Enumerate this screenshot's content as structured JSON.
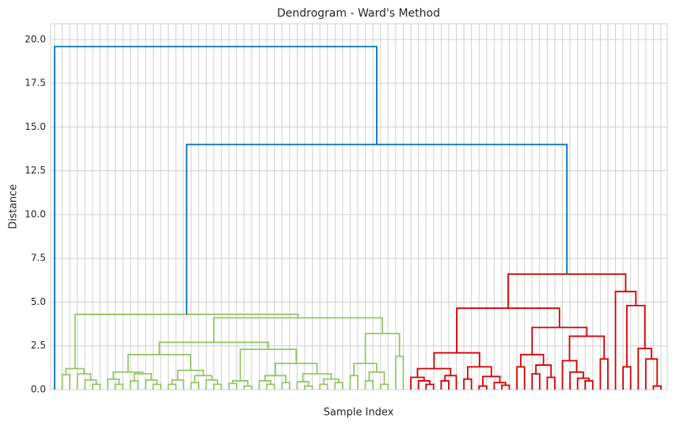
{
  "chart_data": {
    "type": "dendrogram",
    "title": "Dendrogram - Ward's Method",
    "x_label": "Sample Index",
    "y_label": "Distance",
    "ylim": [
      0,
      20.9
    ],
    "yticks": [
      {
        "value": 0,
        "label": "0.0"
      },
      2.5,
      {
        "value": 5,
        "label": "5.0"
      },
      7.5,
      {
        "value": 10,
        "label": "10.0"
      },
      12.5,
      {
        "value": 15,
        "label": "15.0"
      },
      17.5,
      {
        "value": 20,
        "label": "20.0"
      }
    ],
    "grid": true,
    "link_color": "#0173b2",
    "tree": [
      19.6,
      null,
      [
        14.0,
        {
          "color": "#98c46a",
          "node": [
            4.3,
            [
              1.2,
              [
                0.85,
                null,
                null
              ],
              [
                0.9,
                null,
                [
                  0.55,
                  null,
                  [
                    0.3,
                    null,
                    null
                  ]
                ]
              ]
            ],
            [
              4.1,
              [
                2.7,
                [
                  2.0,
                  [
                    1.0,
                    [
                      0.6,
                      null,
                      [
                        0.3,
                        null,
                        null
                      ]
                    ],
                    [
                      0.9,
                      [
                        0.5,
                        null,
                        null
                      ],
                      [
                        0.55,
                        null,
                        [
                          0.3,
                          null,
                          null
                        ]
                      ]
                    ]
                  ],
                  [
                    1.1,
                    [
                      0.55,
                      [
                        0.3,
                        null,
                        null
                      ],
                      null
                    ],
                    [
                      0.8,
                      [
                        0.4,
                        null,
                        null
                      ],
                      [
                        0.55,
                        null,
                        [
                          0.3,
                          null,
                          null
                        ]
                      ]
                    ]
                  ]
                ],
                [
                  2.3,
                  [
                    0.5,
                    [
                      0.35,
                      null,
                      null
                    ],
                    [
                      0.2,
                      null,
                      null
                    ]
                  ],
                  [
                    1.5,
                    [
                      0.8,
                      [
                        0.5,
                        null,
                        [
                          0.3,
                          null,
                          null
                        ]
                      ],
                      [
                        0.4,
                        null,
                        null
                      ]
                    ],
                    [
                      0.9,
                      [
                        0.45,
                        null,
                        [
                          0.2,
                          null,
                          null
                        ]
                      ],
                      [
                        0.6,
                        [
                          0.3,
                          null,
                          null
                        ],
                        [
                          0.4,
                          null,
                          null
                        ]
                      ]
                    ]
                  ]
                ]
              ],
              [
                3.2,
                [
                  1.5,
                  [
                    0.8,
                    null,
                    null
                  ],
                  [
                    1.0,
                    [
                      0.5,
                      null,
                      null
                    ],
                    [
                      0.3,
                      null,
                      null
                    ]
                  ]
                ],
                [
                  1.9,
                  null,
                  null
                ]
              ]
            ]
          ]
        },
        {
          "color": "#d40000",
          "node": [
            6.6,
            [
              4.65,
              [
                2.1,
                [
                  1.2,
                  [
                    0.7,
                    null,
                    [
                      0.5,
                      null,
                      [
                        0.3,
                        null,
                        null
                      ]
                    ]
                  ],
                  [
                    0.8,
                    [
                      0.5,
                      null,
                      null
                    ],
                    null
                  ]
                ],
                [
                  1.3,
                  [
                    0.6,
                    null,
                    null
                  ],
                  [
                    0.75,
                    [
                      0.2,
                      null,
                      null
                    ],
                    [
                      0.4,
                      null,
                      [
                        0.25,
                        null,
                        null
                      ]
                    ]
                  ]
                ]
              ],
              [
                3.55,
                [
                  2.0,
                  [
                    1.3,
                    null,
                    null
                  ],
                  [
                    1.4,
                    [
                      0.9,
                      null,
                      null
                    ],
                    [
                      0.7,
                      null,
                      null
                    ]
                  ]
                ],
                [
                  3.05,
                  [
                    1.65,
                    null,
                    [
                      1.0,
                      null,
                      [
                        0.65,
                        null,
                        [
                          0.5,
                          null,
                          null
                        ]
                      ]
                    ]
                  ],
                  [
                    1.75,
                    null,
                    null
                  ]
                ]
              ]
            ],
            [
              5.6,
              null,
              [
                4.8,
                [
                  1.3,
                  null,
                  null
                ],
                [
                  2.35,
                  null,
                  [
                    1.75,
                    null,
                    [
                      0.2,
                      null,
                      null
                    ]
                  ]
                ]
              ]
            ]
          ]
        }
      ]
    ]
  }
}
